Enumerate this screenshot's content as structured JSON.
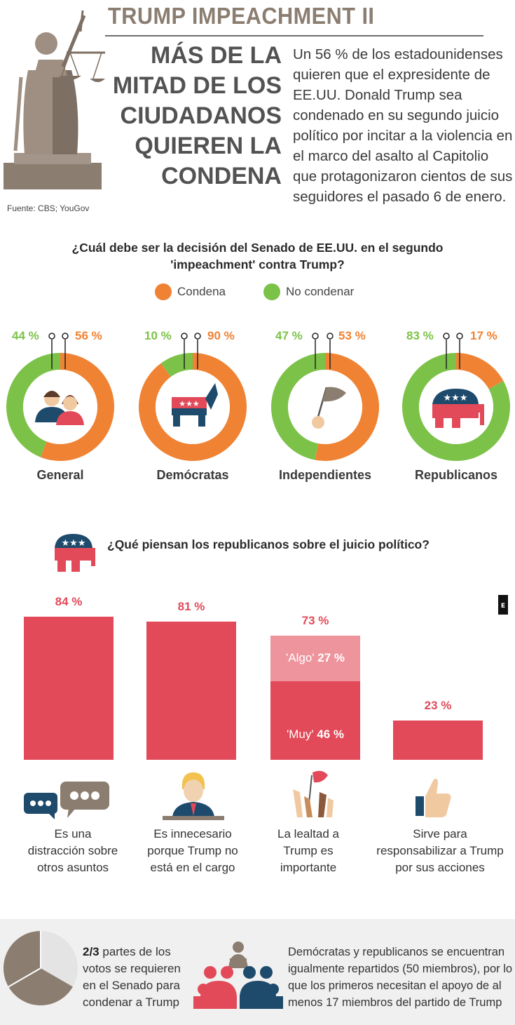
{
  "header": {
    "title": "TRUMP IMPEACHMENT II",
    "headline_lines": [
      "MÁS DE LA",
      "MITAD DE LOS",
      "CIUDADANOS",
      "QUIEREN LA",
      "CONDENA"
    ],
    "intro": "Un 56 % de los estadounidenses quieren que el expresidente de EE.UU. Donald Trump sea condenado en su segundo juicio político por incitar a la violencia en el marco del asalto al Capitolio que protagonizaron cientos de sus seguidores el pasado 6 de enero.",
    "source": "Fuente: CBS; YouGov"
  },
  "colors": {
    "orange": "#f08233",
    "green": "#7cc248",
    "red": "#e24a59",
    "light_red": "#ee949d",
    "brown": "#8b7d70"
  },
  "icons": {
    "statue": "justice-statue-icon",
    "general": "people-couple-icon",
    "democrats": "donkey-icon",
    "independents": "white-flag-icon",
    "republicans": "elephant-icon",
    "distraction": "speech-bubbles-icon",
    "unnecessary": "trump-podium-icon",
    "loyalty": "raised-hands-flag-icon",
    "accountability": "thumbs-up-icon",
    "senate": "senate-people-icon"
  },
  "legend": {
    "condena": "Condena",
    "no_condenar": "No condenar"
  },
  "chart_data": [
    {
      "type": "pie",
      "title": "¿Cuál debe ser la decisión del Senado de EE.UU. en el segundo 'impeachment' contra Trump?",
      "series_names": [
        "Condena",
        "No condenar"
      ],
      "groups": [
        {
          "label": "General",
          "condena": 56,
          "no_condenar": 44,
          "condena_label": "56 %",
          "no_condenar_label": "44 %"
        },
        {
          "label": "Demócratas",
          "condena": 90,
          "no_condenar": 10,
          "condena_label": "90 %",
          "no_condenar_label": "10 %"
        },
        {
          "label": "Independientes",
          "condena": 53,
          "no_condenar": 47,
          "condena_label": "53 %",
          "no_condenar_label": "47 %"
        },
        {
          "label": "Republicanos",
          "condena": 17,
          "no_condenar": 83,
          "condena_label": "17 %",
          "no_condenar_label": "83 %"
        }
      ]
    },
    {
      "type": "bar",
      "title": "¿Qué piensan los republicanos sobre el juicio político?",
      "categories": [
        "Es una distracción sobre otros asuntos",
        "Es innecesario porque Trump no está en el cargo",
        "La lealtad a Trump es importante",
        "Sirve para responsabilizar a Trump por sus acciones"
      ],
      "values": [
        84,
        81,
        73,
        23
      ],
      "value_labels": [
        "84 %",
        "81 %",
        "73 %",
        "23 %"
      ],
      "breakdown": {
        "index": 2,
        "parts": [
          {
            "name": "'Muy'",
            "value": 46,
            "label": "46 %"
          },
          {
            "name": "'Algo'",
            "value": 27,
            "label": "27 %"
          }
        ]
      },
      "caption_lines": [
        [
          "Es una",
          "distracción sobre",
          "otros asuntos"
        ],
        [
          "Es innecesario",
          "porque Trump no",
          "está en el cargo"
        ],
        [
          "La lealtad a",
          "Trump es",
          "importante"
        ],
        [
          "Sirve para",
          "responsabilizar a Trump",
          "por sus acciones"
        ]
      ]
    }
  ],
  "bottom": {
    "fraction_bold": "2/3",
    "fraction_text": " partes de los votos se requieren en el Senado para condenar a Trump",
    "senate_text": "Demócratas y republicanos se encuentran igualmente repartidos (50 miembros), por lo que los primeros necesitan el apoyo de al menos 17 miembros del partido de Trump"
  }
}
